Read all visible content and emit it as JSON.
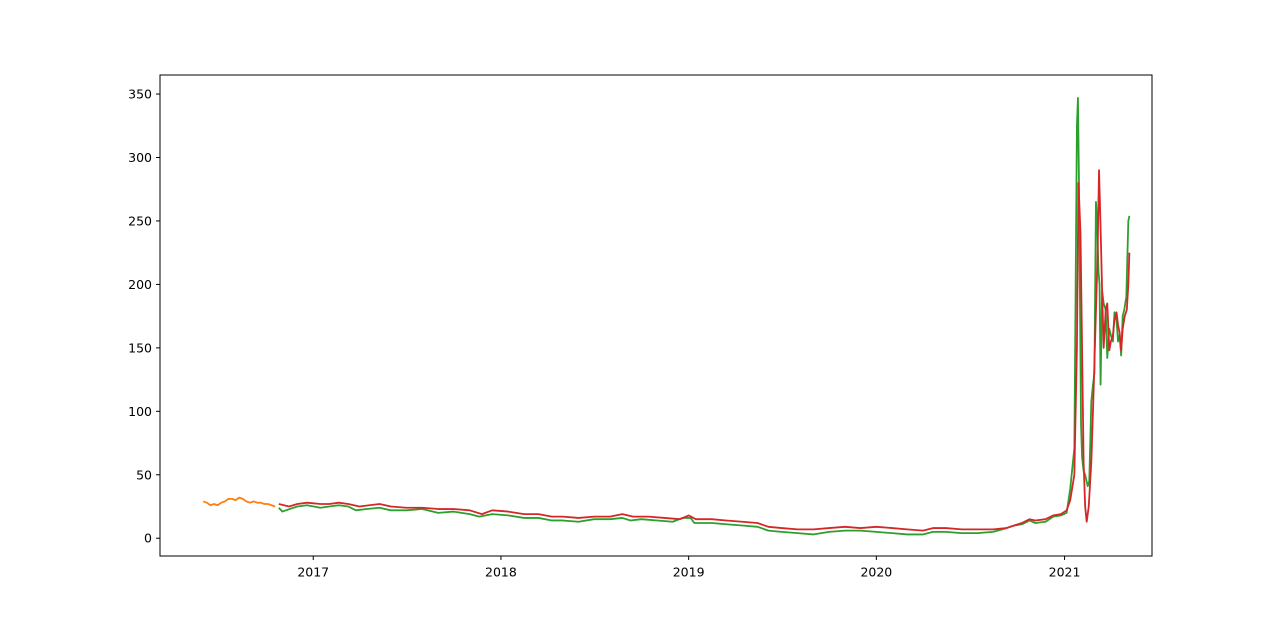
{
  "chart_data": {
    "type": "line",
    "title": "",
    "xlabel": "",
    "ylabel": "",
    "x_ticks": [
      "2017",
      "2018",
      "2019",
      "2020",
      "2021"
    ],
    "y_ticks": [
      "0",
      "50",
      "100",
      "150",
      "200",
      "250",
      "300",
      "350"
    ],
    "xlim": [
      "2016-03-09",
      "2021-06-20"
    ],
    "ylim": [
      -14,
      365
    ],
    "grid": false,
    "legend": "none",
    "series": [
      {
        "color": "#ff7f0e",
        "points": [
          [
            "2016-06-01",
            29
          ],
          [
            "2016-06-08",
            28
          ],
          [
            "2016-06-15",
            26
          ],
          [
            "2016-06-22",
            27
          ],
          [
            "2016-06-29",
            26
          ],
          [
            "2016-07-06",
            28
          ],
          [
            "2016-07-13",
            29
          ],
          [
            "2016-07-20",
            31
          ],
          [
            "2016-07-27",
            31
          ],
          [
            "2016-08-03",
            30
          ],
          [
            "2016-08-10",
            32
          ],
          [
            "2016-08-17",
            31
          ],
          [
            "2016-08-24",
            29
          ],
          [
            "2016-08-31",
            28
          ],
          [
            "2016-09-07",
            29
          ],
          [
            "2016-09-14",
            28
          ],
          [
            "2016-09-21",
            28
          ],
          [
            "2016-09-28",
            27
          ],
          [
            "2016-10-05",
            27
          ],
          [
            "2016-10-12",
            26
          ],
          [
            "2016-10-19",
            25
          ]
        ]
      },
      {
        "color": "#2ca02c",
        "points": [
          [
            "2016-10-26",
            24
          ],
          [
            "2016-11-02",
            21
          ],
          [
            "2016-11-16",
            23
          ],
          [
            "2016-12-01",
            25
          ],
          [
            "2016-12-20",
            26
          ],
          [
            "2017-01-15",
            24
          ],
          [
            "2017-02-01",
            25
          ],
          [
            "2017-02-20",
            26
          ],
          [
            "2017-03-10",
            25
          ],
          [
            "2017-03-25",
            22
          ],
          [
            "2017-04-15",
            23
          ],
          [
            "2017-05-10",
            24
          ],
          [
            "2017-06-01",
            22
          ],
          [
            "2017-07-01",
            22
          ],
          [
            "2017-08-01",
            23
          ],
          [
            "2017-09-01",
            20
          ],
          [
            "2017-10-01",
            21
          ],
          [
            "2017-11-01",
            19
          ],
          [
            "2017-11-20",
            17
          ],
          [
            "2017-12-15",
            19
          ],
          [
            "2018-01-15",
            18
          ],
          [
            "2018-02-15",
            16
          ],
          [
            "2018-03-15",
            16
          ],
          [
            "2018-04-10",
            14
          ],
          [
            "2018-05-01",
            14
          ],
          [
            "2018-06-01",
            13
          ],
          [
            "2018-07-01",
            15
          ],
          [
            "2018-08-01",
            15
          ],
          [
            "2018-08-25",
            16
          ],
          [
            "2018-09-10",
            14
          ],
          [
            "2018-10-01",
            15
          ],
          [
            "2018-11-01",
            14
          ],
          [
            "2018-12-01",
            13
          ],
          [
            "2018-12-20",
            16
          ],
          [
            "2019-01-05",
            16
          ],
          [
            "2019-01-12",
            12
          ],
          [
            "2019-02-15",
            12
          ],
          [
            "2019-03-15",
            11
          ],
          [
            "2019-04-15",
            10
          ],
          [
            "2019-05-15",
            9
          ],
          [
            "2019-06-05",
            6
          ],
          [
            "2019-07-01",
            5
          ],
          [
            "2019-08-01",
            4
          ],
          [
            "2019-09-01",
            3
          ],
          [
            "2019-10-01",
            5
          ],
          [
            "2019-11-01",
            6
          ],
          [
            "2019-12-01",
            6
          ],
          [
            "2020-01-01",
            5
          ],
          [
            "2020-02-01",
            4
          ],
          [
            "2020-03-01",
            3
          ],
          [
            "2020-04-01",
            3
          ],
          [
            "2020-04-20",
            5
          ],
          [
            "2020-05-15",
            5
          ],
          [
            "2020-06-15",
            4
          ],
          [
            "2020-07-15",
            4
          ],
          [
            "2020-08-15",
            5
          ],
          [
            "2020-09-10",
            8
          ],
          [
            "2020-09-25",
            10
          ],
          [
            "2020-10-10",
            11
          ],
          [
            "2020-10-25",
            14
          ],
          [
            "2020-11-05",
            12
          ],
          [
            "2020-11-25",
            13
          ],
          [
            "2020-12-10",
            17
          ],
          [
            "2020-12-25",
            18
          ],
          [
            "2021-01-05",
            20
          ],
          [
            "2021-01-12",
            39
          ],
          [
            "2021-01-20",
            71
          ],
          [
            "2021-01-25",
            325
          ],
          [
            "2021-01-27",
            347
          ],
          [
            "2021-01-29",
            280
          ],
          [
            "2021-02-02",
            90
          ],
          [
            "2021-02-04",
            64
          ],
          [
            "2021-02-07",
            53
          ],
          [
            "2021-02-10",
            50
          ],
          [
            "2021-02-15",
            41
          ],
          [
            "2021-02-18",
            45
          ],
          [
            "2021-02-22",
            108
          ],
          [
            "2021-02-25",
            120
          ],
          [
            "2021-02-28",
            130
          ],
          [
            "2021-03-03",
            265
          ],
          [
            "2021-03-05",
            252
          ],
          [
            "2021-03-08",
            210
          ],
          [
            "2021-03-10",
            200
          ],
          [
            "2021-03-12",
            121
          ],
          [
            "2021-03-15",
            195
          ],
          [
            "2021-03-18",
            185
          ],
          [
            "2021-03-22",
            180
          ],
          [
            "2021-03-25",
            142
          ],
          [
            "2021-03-29",
            165
          ],
          [
            "2021-04-01",
            160
          ],
          [
            "2021-04-05",
            155
          ],
          [
            "2021-04-08",
            178
          ],
          [
            "2021-04-12",
            172
          ],
          [
            "2021-04-15",
            155
          ],
          [
            "2021-04-18",
            160
          ],
          [
            "2021-04-21",
            144
          ],
          [
            "2021-04-24",
            175
          ],
          [
            "2021-04-27",
            180
          ],
          [
            "2021-05-01",
            190
          ],
          [
            "2021-05-05",
            250
          ],
          [
            "2021-05-07",
            254
          ]
        ]
      },
      {
        "color": "#d62728",
        "points": [
          [
            "2016-10-26",
            27
          ],
          [
            "2016-11-15",
            25
          ],
          [
            "2016-12-01",
            27
          ],
          [
            "2016-12-20",
            28
          ],
          [
            "2017-01-15",
            27
          ],
          [
            "2017-02-01",
            27
          ],
          [
            "2017-02-20",
            28
          ],
          [
            "2017-03-10",
            27
          ],
          [
            "2017-04-01",
            25
          ],
          [
            "2017-04-20",
            26
          ],
          [
            "2017-05-10",
            27
          ],
          [
            "2017-06-01",
            25
          ],
          [
            "2017-07-01",
            24
          ],
          [
            "2017-08-01",
            24
          ],
          [
            "2017-09-01",
            23
          ],
          [
            "2017-10-01",
            23
          ],
          [
            "2017-11-01",
            22
          ],
          [
            "2017-11-25",
            19
          ],
          [
            "2017-12-15",
            22
          ],
          [
            "2018-01-15",
            21
          ],
          [
            "2018-02-15",
            19
          ],
          [
            "2018-03-15",
            19
          ],
          [
            "2018-04-10",
            17
          ],
          [
            "2018-05-01",
            17
          ],
          [
            "2018-06-01",
            16
          ],
          [
            "2018-07-01",
            17
          ],
          [
            "2018-08-01",
            17
          ],
          [
            "2018-08-25",
            19
          ],
          [
            "2018-09-15",
            17
          ],
          [
            "2018-10-15",
            17
          ],
          [
            "2018-11-15",
            16
          ],
          [
            "2018-12-15",
            15
          ],
          [
            "2019-01-01",
            18
          ],
          [
            "2019-01-15",
            15
          ],
          [
            "2019-02-15",
            15
          ],
          [
            "2019-03-15",
            14
          ],
          [
            "2019-04-15",
            13
          ],
          [
            "2019-05-15",
            12
          ],
          [
            "2019-06-05",
            9
          ],
          [
            "2019-07-01",
            8
          ],
          [
            "2019-08-01",
            7
          ],
          [
            "2019-09-01",
            7
          ],
          [
            "2019-10-01",
            8
          ],
          [
            "2019-11-01",
            9
          ],
          [
            "2019-12-01",
            8
          ],
          [
            "2020-01-01",
            9
          ],
          [
            "2020-02-01",
            8
          ],
          [
            "2020-03-01",
            7
          ],
          [
            "2020-04-01",
            6
          ],
          [
            "2020-04-20",
            8
          ],
          [
            "2020-05-15",
            8
          ],
          [
            "2020-06-15",
            7
          ],
          [
            "2020-07-15",
            7
          ],
          [
            "2020-08-15",
            7
          ],
          [
            "2020-09-10",
            8
          ],
          [
            "2020-09-25",
            10
          ],
          [
            "2020-10-10",
            12
          ],
          [
            "2020-10-25",
            15
          ],
          [
            "2020-11-05",
            14
          ],
          [
            "2020-11-25",
            15
          ],
          [
            "2020-12-10",
            18
          ],
          [
            "2020-12-25",
            19
          ],
          [
            "2021-01-05",
            22
          ],
          [
            "2021-01-12",
            30
          ],
          [
            "2021-01-20",
            50
          ],
          [
            "2021-01-25",
            150
          ],
          [
            "2021-01-28",
            280
          ],
          [
            "2021-02-01",
            240
          ],
          [
            "2021-02-04",
            150
          ],
          [
            "2021-02-07",
            60
          ],
          [
            "2021-02-10",
            25
          ],
          [
            "2021-02-13",
            13
          ],
          [
            "2021-02-17",
            25
          ],
          [
            "2021-02-22",
            60
          ],
          [
            "2021-02-26",
            110
          ],
          [
            "2021-03-02",
            165
          ],
          [
            "2021-03-06",
            220
          ],
          [
            "2021-03-09",
            290
          ],
          [
            "2021-03-12",
            245
          ],
          [
            "2021-03-15",
            195
          ],
          [
            "2021-03-18",
            150
          ],
          [
            "2021-03-22",
            180
          ],
          [
            "2021-03-25",
            185
          ],
          [
            "2021-03-29",
            148
          ],
          [
            "2021-04-01",
            155
          ],
          [
            "2021-04-05",
            160
          ],
          [
            "2021-04-08",
            172
          ],
          [
            "2021-04-12",
            178
          ],
          [
            "2021-04-15",
            168
          ],
          [
            "2021-04-18",
            162
          ],
          [
            "2021-04-21",
            148
          ],
          [
            "2021-04-24",
            165
          ],
          [
            "2021-04-28",
            175
          ],
          [
            "2021-05-02",
            180
          ],
          [
            "2021-05-05",
            200
          ],
          [
            "2021-05-07",
            225
          ]
        ]
      }
    ]
  }
}
